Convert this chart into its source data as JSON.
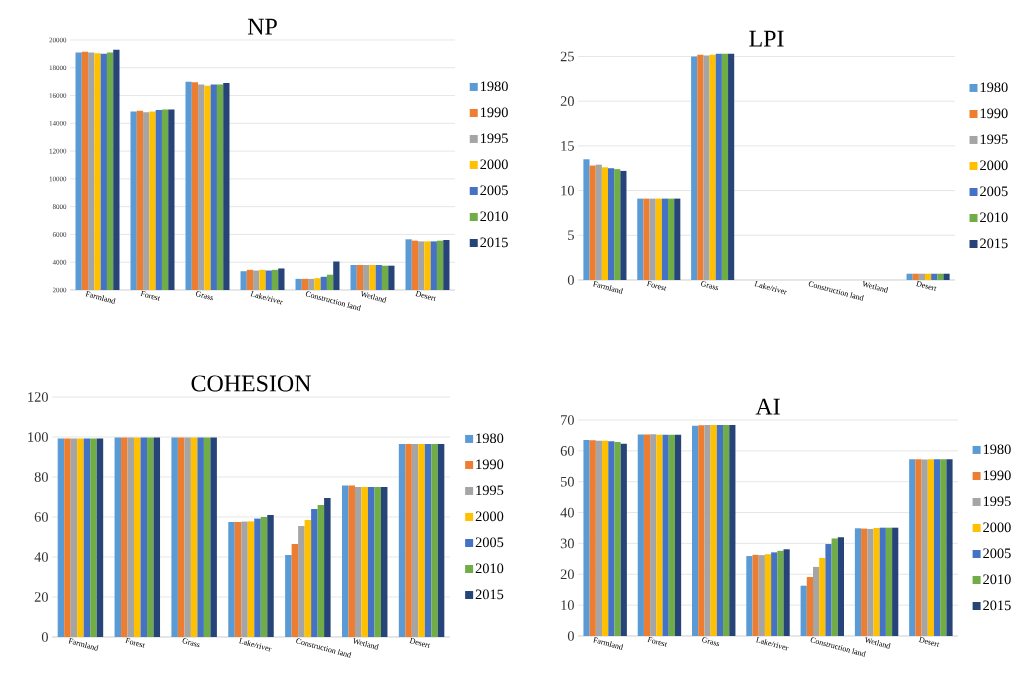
{
  "chart_data": [
    {
      "type": "bar",
      "title": "NP",
      "categories": [
        "Farmland",
        "Forest",
        "Grass",
        "Lake/river",
        "Construction land",
        "Wetland",
        "Desert"
      ],
      "ylim": [
        2000,
        20000
      ],
      "yticks": [
        2000,
        4000,
        6000,
        8000,
        10000,
        12000,
        14000,
        16000,
        18000,
        20000
      ],
      "grid": "y",
      "legend": "right",
      "series": [
        {
          "name": "1980",
          "color": "#5b9bd5",
          "values": [
            19100,
            14850,
            17000,
            3350,
            2800,
            3800,
            5650
          ]
        },
        {
          "name": "1990",
          "color": "#ed7d31",
          "values": [
            19150,
            14900,
            16950,
            3450,
            2800,
            3800,
            5550
          ]
        },
        {
          "name": "1995",
          "color": "#a5a5a5",
          "values": [
            19100,
            14800,
            16800,
            3400,
            2800,
            3800,
            5500
          ]
        },
        {
          "name": "2000",
          "color": "#ffc000",
          "values": [
            19050,
            14850,
            16700,
            3450,
            2850,
            3800,
            5500
          ]
        },
        {
          "name": "2005",
          "color": "#4472c4",
          "values": [
            19000,
            14950,
            16800,
            3400,
            2950,
            3800,
            5500
          ]
        },
        {
          "name": "2010",
          "color": "#70ad47",
          "values": [
            19100,
            15000,
            16800,
            3450,
            3100,
            3750,
            5550
          ]
        },
        {
          "name": "2015",
          "color": "#264478",
          "values": [
            19300,
            15000,
            16900,
            3550,
            4050,
            3750,
            5600
          ]
        }
      ]
    },
    {
      "type": "bar",
      "title": "LPI",
      "categories": [
        "Farmland",
        "Forest",
        "Grass",
        "Lake/river",
        "Construction land",
        "Wetland",
        "Desert"
      ],
      "ylim": [
        0,
        25.5
      ],
      "yticks": [
        0,
        5,
        10,
        15,
        20,
        25
      ],
      "grid": "y",
      "legend": "right",
      "series": [
        {
          "name": "1980",
          "color": "#5b9bd5",
          "values": [
            13.5,
            9.1,
            25.0,
            0,
            0,
            0,
            0.7
          ]
        },
        {
          "name": "1990",
          "color": "#ed7d31",
          "values": [
            12.8,
            9.1,
            25.2,
            0,
            0,
            0,
            0.7
          ]
        },
        {
          "name": "1995",
          "color": "#a5a5a5",
          "values": [
            12.9,
            9.1,
            25.1,
            0,
            0,
            0,
            0.7
          ]
        },
        {
          "name": "2000",
          "color": "#ffc000",
          "values": [
            12.6,
            9.1,
            25.2,
            0,
            0,
            0,
            0.7
          ]
        },
        {
          "name": "2005",
          "color": "#4472c4",
          "values": [
            12.5,
            9.1,
            25.3,
            0,
            0,
            0,
            0.7
          ]
        },
        {
          "name": "2010",
          "color": "#70ad47",
          "values": [
            12.4,
            9.1,
            25.3,
            0,
            0,
            0,
            0.7
          ]
        },
        {
          "name": "2015",
          "color": "#264478",
          "values": [
            12.2,
            9.1,
            25.3,
            0,
            0,
            0,
            0.7
          ]
        }
      ]
    },
    {
      "type": "bar",
      "title": "COHESION",
      "categories": [
        "Farmland",
        "Forest",
        "Grass",
        "Lake/river",
        "Construction land",
        "Wetland",
        "Desert"
      ],
      "ylim": [
        0,
        120
      ],
      "yticks": [
        0,
        20,
        40,
        60,
        80,
        100,
        120
      ],
      "grid": "y",
      "legend": "right",
      "series": [
        {
          "name": "1980",
          "color": "#5b9bd5",
          "values": [
            99.3,
            99.8,
            99.8,
            57.5,
            41,
            75.8,
            96.5
          ]
        },
        {
          "name": "1990",
          "color": "#ed7d31",
          "values": [
            99.3,
            99.8,
            99.8,
            57.5,
            46.5,
            75.8,
            96.5
          ]
        },
        {
          "name": "1995",
          "color": "#a5a5a5",
          "values": [
            99.3,
            99.8,
            99.8,
            57.7,
            55.5,
            75,
            96.5
          ]
        },
        {
          "name": "2000",
          "color": "#ffc000",
          "values": [
            99.3,
            99.8,
            99.8,
            57.8,
            58.5,
            75,
            96.5
          ]
        },
        {
          "name": "2005",
          "color": "#4472c4",
          "values": [
            99.3,
            99.8,
            99.8,
            59.2,
            64,
            75,
            96.5
          ]
        },
        {
          "name": "2010",
          "color": "#70ad47",
          "values": [
            99.3,
            99.8,
            99.8,
            60,
            66,
            75,
            96.5
          ]
        },
        {
          "name": "2015",
          "color": "#264478",
          "values": [
            99.3,
            99.8,
            99.8,
            61,
            69.5,
            75,
            96.5
          ]
        }
      ]
    },
    {
      "type": "bar",
      "title": "AI",
      "categories": [
        "Farmland",
        "Forest",
        "Grass",
        "Lake/river",
        "Construction land",
        "Wetland",
        "Desert"
      ],
      "ylim": [
        0,
        70
      ],
      "yticks": [
        0,
        10,
        20,
        30,
        40,
        50,
        60,
        70
      ],
      "grid": "y",
      "legend": "right",
      "series": [
        {
          "name": "1980",
          "color": "#5b9bd5",
          "values": [
            63.5,
            65.3,
            68.1,
            25.9,
            16.3,
            34.9,
            57.3
          ]
        },
        {
          "name": "1990",
          "color": "#ed7d31",
          "values": [
            63.4,
            65.3,
            68.3,
            26.3,
            19.1,
            34.8,
            57.3
          ]
        },
        {
          "name": "1995",
          "color": "#a5a5a5",
          "values": [
            63.3,
            65.4,
            68.4,
            26.2,
            22.4,
            34.7,
            57.2
          ]
        },
        {
          "name": "2000",
          "color": "#ffc000",
          "values": [
            63.3,
            65.2,
            68.4,
            26.5,
            25.3,
            35.0,
            57.3
          ]
        },
        {
          "name": "2005",
          "color": "#4472c4",
          "values": [
            63.1,
            65.2,
            68.4,
            27.1,
            29.8,
            35.1,
            57.3
          ]
        },
        {
          "name": "2010",
          "color": "#70ad47",
          "values": [
            62.9,
            65.2,
            68.4,
            27.6,
            31.6,
            35.1,
            57.3
          ]
        },
        {
          "name": "2015",
          "color": "#264478",
          "values": [
            62.3,
            65.2,
            68.4,
            28.1,
            32.0,
            35.1,
            57.3
          ]
        }
      ]
    }
  ]
}
